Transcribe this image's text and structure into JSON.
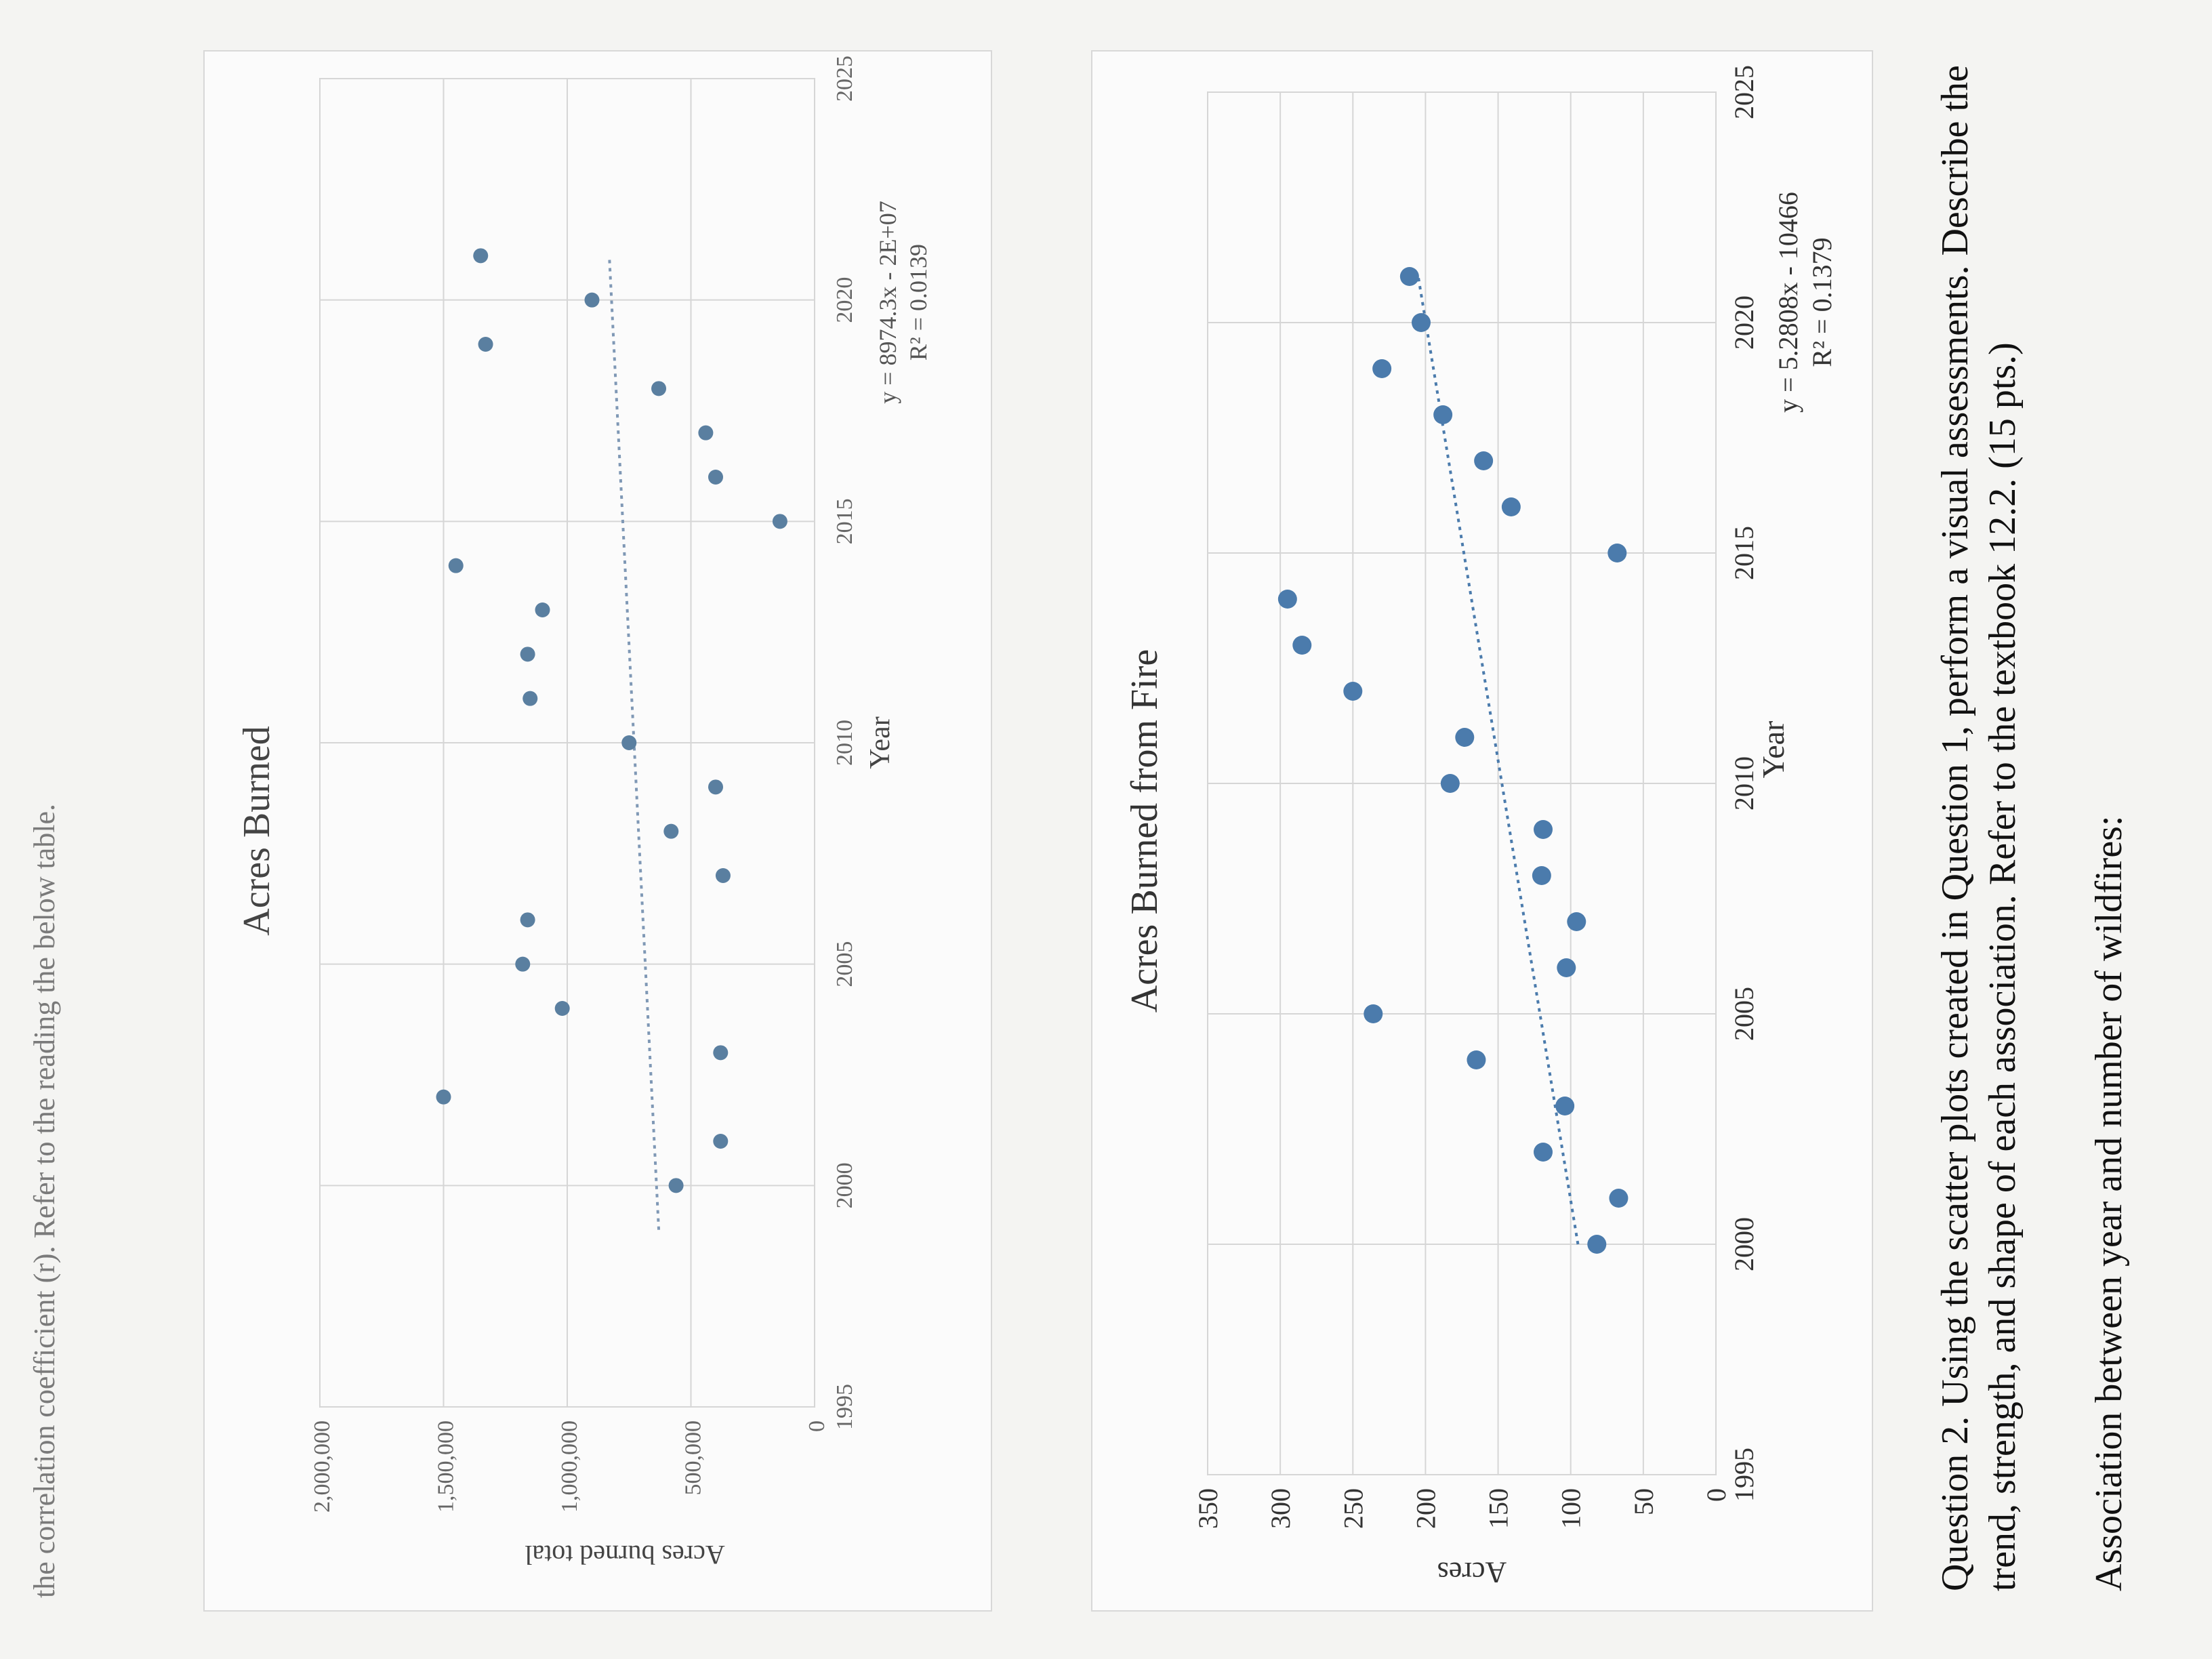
{
  "header_note": "the correlation coefficient (r). Refer to the reading the below table.",
  "charts": [
    {
      "title": "Acres Burned",
      "xlabel": "Year",
      "ylabel": "Acres burned total",
      "equation": "y = 8974.3x - 2E+07",
      "r2": "R² = 0.0139"
    },
    {
      "title": "Acres Burned from Fire",
      "xlabel": "Year",
      "ylabel": "Acres",
      "equation": "y = 5.2808x - 10466",
      "r2": "R² = 0.1379"
    }
  ],
  "chart_data": [
    {
      "type": "scatter",
      "title": "Acres Burned",
      "xlabel": "Year",
      "ylabel": "Acres burned total",
      "xlim": [
        1995,
        2025
      ],
      "ylim": [
        0,
        2000000
      ],
      "x_ticks": [
        "1995",
        "2000",
        "2005",
        "2010",
        "2015",
        "2020",
        "2025"
      ],
      "y_ticks": [
        "0",
        "500,000",
        "1,000,000",
        "1,500,000",
        "2,000,000"
      ],
      "grid": true,
      "trendline": {
        "type": "linear",
        "equation": "y = 8974.3x - 2E+07",
        "r2": "R² = 0.0139",
        "from": [
          1999,
          630000
        ],
        "to": [
          2021,
          830000
        ]
      },
      "x": [
        2000,
        2001,
        2002,
        2003,
        2004,
        2005,
        2006,
        2007,
        2008,
        2009,
        2010,
        2011,
        2012,
        2013,
        2014,
        2015,
        2016,
        2017,
        2018,
        2019,
        2020,
        2021
      ],
      "y": [
        560000,
        380000,
        1500000,
        380000,
        1020000,
        1180000,
        1160000,
        370000,
        580000,
        400000,
        750000,
        1150000,
        1160000,
        1100000,
        1450000,
        140000,
        400000,
        440000,
        630000,
        1330000,
        900000,
        1350000
      ]
    },
    {
      "type": "scatter",
      "title": "Acres Burned from Fire",
      "xlabel": "Year",
      "ylabel": "Acres",
      "xlim": [
        1995,
        2025
      ],
      "ylim": [
        0,
        350
      ],
      "x_ticks": [
        "1995",
        "2000",
        "2005",
        "2010",
        "2015",
        "2020",
        "2025"
      ],
      "y_ticks": [
        "0",
        "50",
        "100",
        "150",
        "200",
        "250",
        "300",
        "350"
      ],
      "grid": true,
      "trendline": {
        "type": "linear",
        "equation": "y = 5.2808x - 10466",
        "r2": "R² = 0.1379",
        "from": [
          2000,
          95
        ],
        "to": [
          2021,
          205
        ]
      },
      "x": [
        2000,
        2001,
        2002,
        2003,
        2004,
        2005,
        2006,
        2007,
        2008,
        2009,
        2010,
        2011,
        2012,
        2013,
        2014,
        2015,
        2016,
        2017,
        2018,
        2019,
        2020,
        2021
      ],
      "y": [
        82,
        67,
        119,
        104,
        165,
        236,
        103,
        96,
        120,
        119,
        183,
        173,
        250,
        285,
        295,
        68,
        141,
        160,
        188,
        230,
        203,
        211
      ]
    }
  ],
  "question": {
    "text": "Question 2. Using the scatter plots created in Question 1, perform a visual assessments. Describe the trend, strength, and shape of each association. Refer to the textbook 12.2. (15 pts.)",
    "association_label": "Association between year and number of wildfires:"
  }
}
